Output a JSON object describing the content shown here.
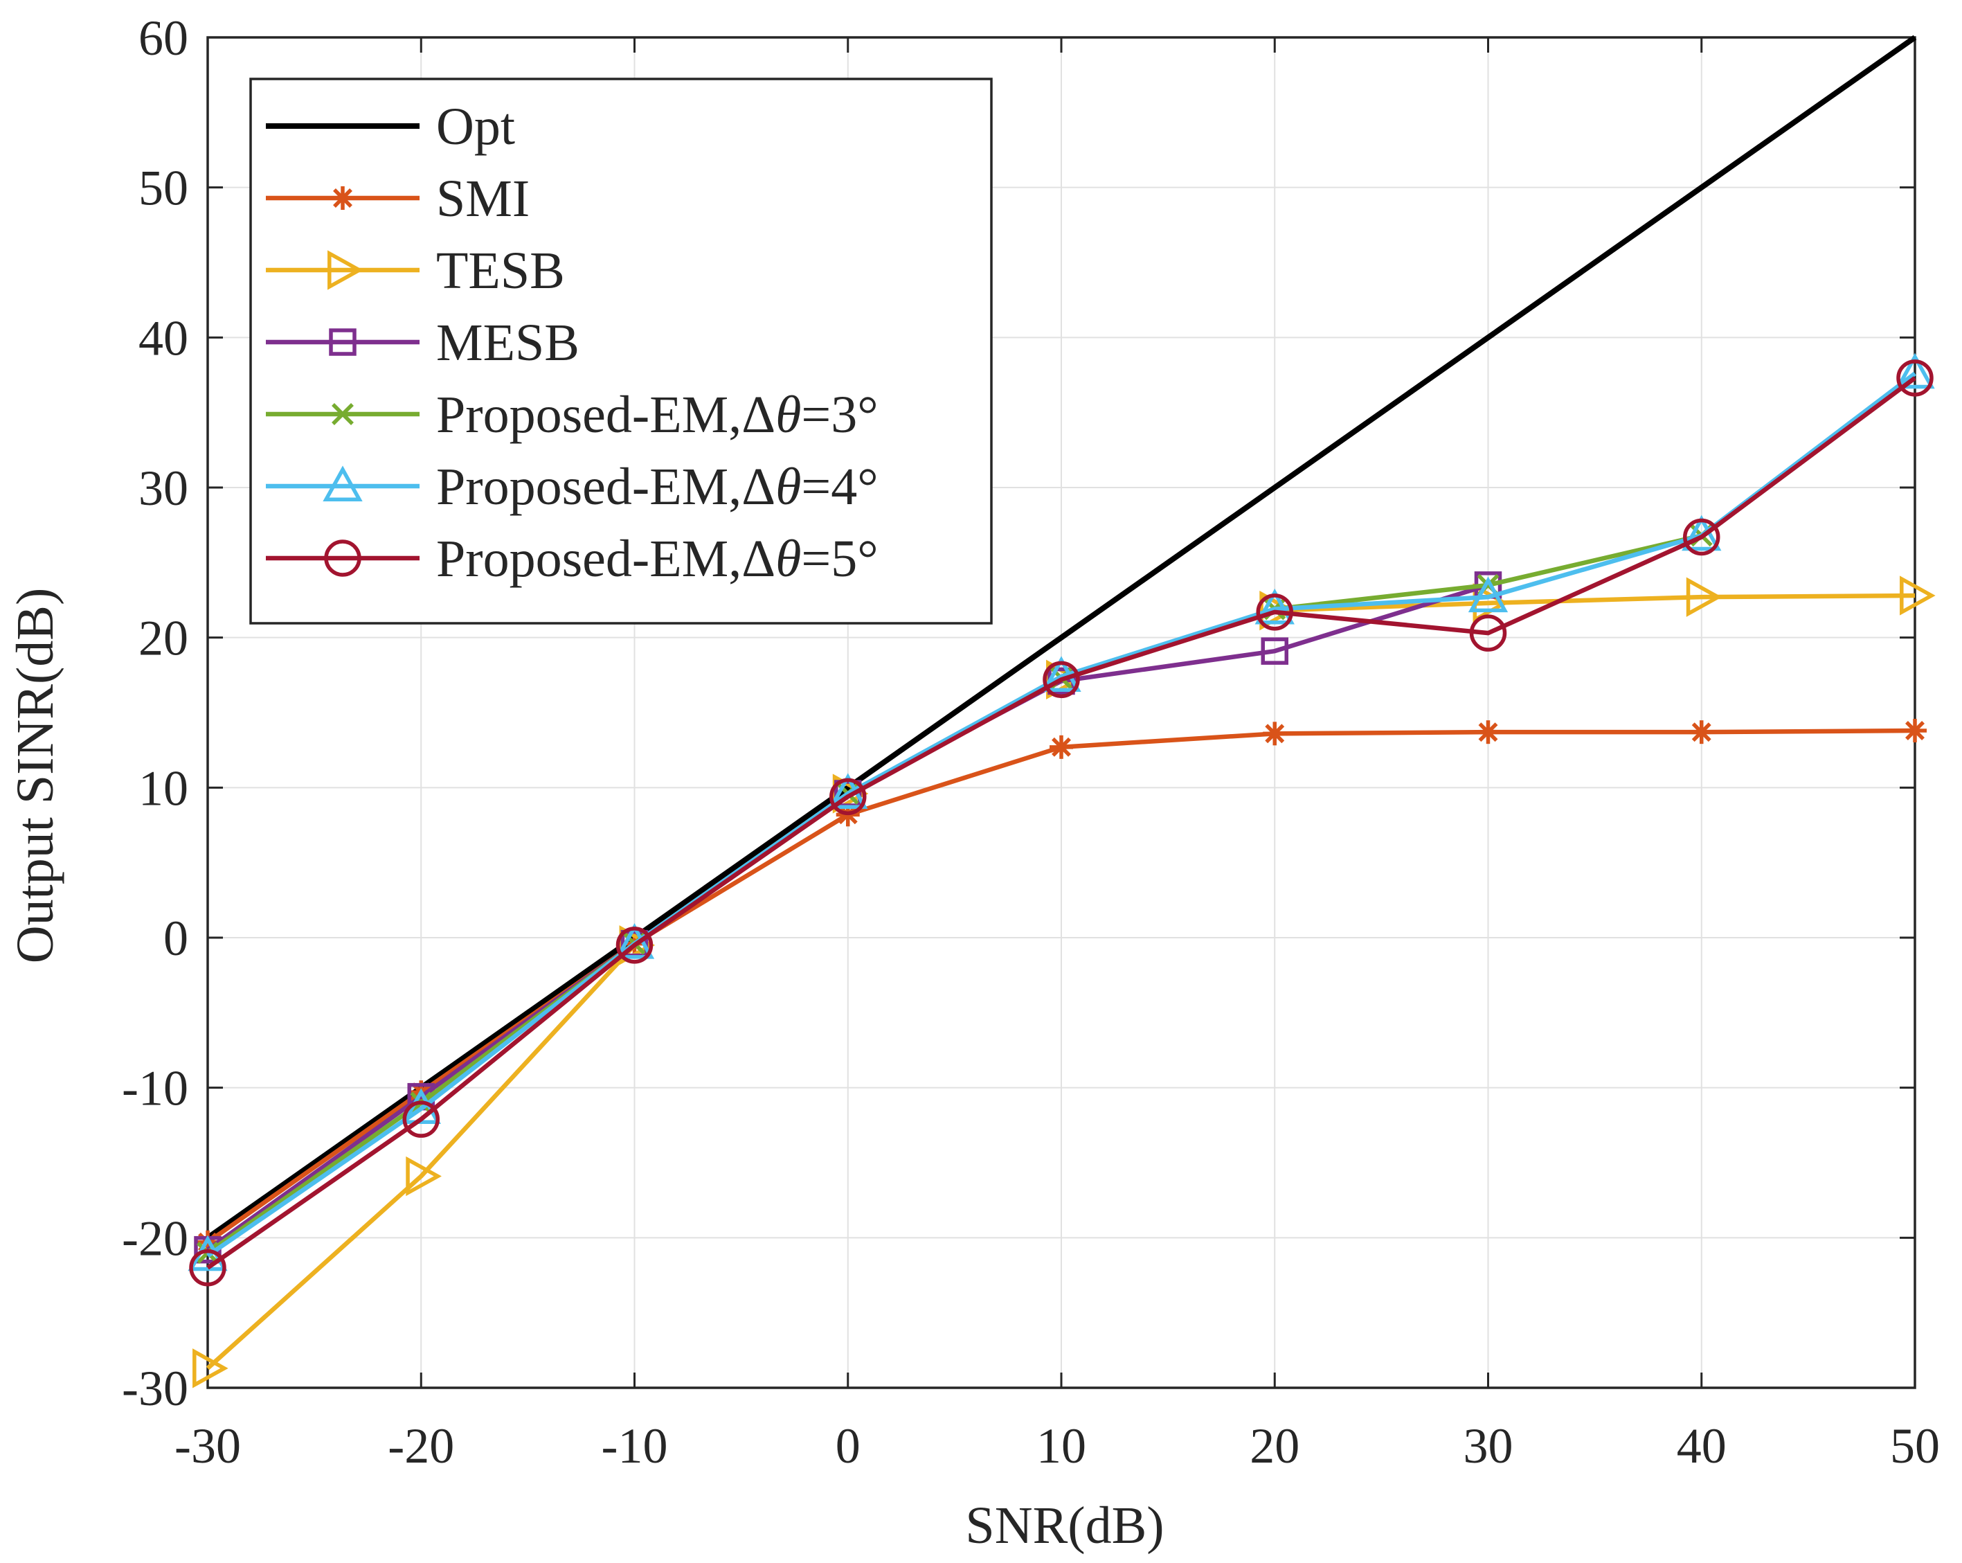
{
  "chart_data": {
    "type": "line",
    "title": "",
    "xlabel": "SNR(dB)",
    "ylabel": "Output SINR(dB)",
    "xlim": [
      -30,
      50
    ],
    "ylim": [
      -30,
      60
    ],
    "xticks": [
      -30,
      -20,
      -10,
      0,
      10,
      20,
      30,
      40,
      50
    ],
    "yticks": [
      -30,
      -20,
      -10,
      0,
      10,
      20,
      30,
      40,
      50,
      60
    ],
    "grid": true,
    "legend_position": "top-left",
    "x": [
      -30,
      -20,
      -10,
      0,
      10,
      20,
      30,
      40,
      50
    ],
    "series": [
      {
        "name": "Opt",
        "color": "#000000",
        "marker": "none",
        "values": [
          -20,
          -10,
          0,
          10,
          20,
          30,
          40,
          50,
          60
        ]
      },
      {
        "name": "SMI",
        "color": "#D95319",
        "marker": "asterisk",
        "values": [
          -20.3,
          -10.3,
          -0.4,
          8.2,
          12.7,
          13.6,
          13.7,
          13.7,
          13.8
        ]
      },
      {
        "name": "TESB",
        "color": "#EDB120",
        "marker": "triangle-right",
        "values": [
          -28.7,
          -15.9,
          -0.5,
          9.6,
          17.2,
          21.8,
          22.3,
          22.7,
          22.8
        ]
      },
      {
        "name": "MESB",
        "color": "#7E2F8E",
        "marker": "square",
        "values": [
          -20.8,
          -10.6,
          -0.4,
          9.6,
          17.1,
          19.1,
          23.5,
          null,
          null
        ]
      },
      {
        "name": "Proposed-EM,Δθ=3°",
        "label_prefix": "Proposed-EM,Δ",
        "label_symbol": "θ",
        "label_suffix": "=3°",
        "color": "#77AC30",
        "marker": "x",
        "values": [
          -21.0,
          -11.0,
          -0.4,
          9.6,
          17.3,
          21.9,
          23.5,
          26.8,
          null
        ]
      },
      {
        "name": "Proposed-EM,Δθ=4°",
        "label_prefix": "Proposed-EM,Δ",
        "label_symbol": "θ",
        "label_suffix": "=4°",
        "color": "#4DBEEE",
        "marker": "triangle-up",
        "values": [
          -21.2,
          -11.4,
          -0.4,
          9.6,
          17.4,
          21.9,
          22.7,
          26.8,
          37.6
        ]
      },
      {
        "name": "Proposed-EM,Δθ=5°",
        "label_prefix": "Proposed-EM,Δ",
        "label_symbol": "θ",
        "label_suffix": "=5°",
        "color": "#A2142F",
        "marker": "circle",
        "values": [
          -22.0,
          -12.1,
          -0.5,
          9.4,
          17.2,
          21.7,
          20.3,
          26.7,
          37.3
        ]
      }
    ]
  }
}
